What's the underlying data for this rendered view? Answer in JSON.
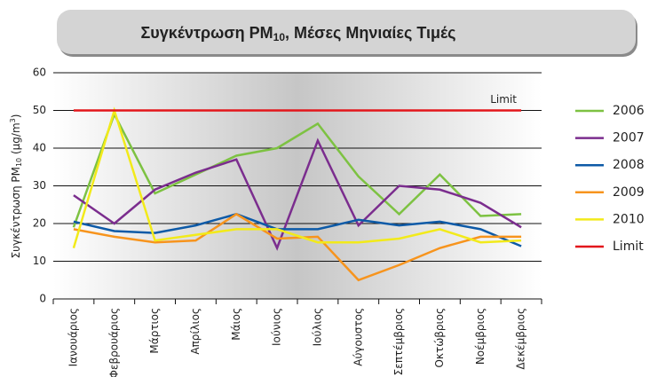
{
  "chart_data": {
    "type": "line",
    "title_parts": [
      "Συγκέντρωση PM",
      "10",
      ", Μέσες Μηνιαίες Τιμές"
    ],
    "y_label_parts": [
      "Συγκέντρωση PM",
      "10",
      " (μg/m",
      "3",
      ")"
    ],
    "annotation": "Limit",
    "categories": [
      "Ιανουάριος",
      "Φεβρουάριος",
      "Μάρτιος",
      "Απρίλιος",
      "Μάιος",
      "Ιούνιος",
      "Ιούλιος",
      "Αύγουστος",
      "Σεπτέμβριος",
      "Οκτώβριος",
      "Νοέμβριος",
      "Δεκέμβριος"
    ],
    "series": [
      {
        "name": "2006",
        "color": "#7dc242",
        "values": [
          19,
          49,
          28,
          33,
          38,
          40,
          46.5,
          32.5,
          22.5,
          33,
          22,
          22.5
        ]
      },
      {
        "name": "2007",
        "color": "#7b2d8e",
        "values": [
          27.5,
          20,
          29,
          33.5,
          37,
          13.5,
          42,
          19.5,
          30,
          29,
          25.5,
          19
        ]
      },
      {
        "name": "2008",
        "color": "#0d5aa7",
        "values": [
          20.5,
          18,
          17.5,
          19.5,
          22.5,
          18.5,
          18.5,
          21,
          19.5,
          20.5,
          18.5,
          14
        ]
      },
      {
        "name": "2009",
        "color": "#f7941d",
        "values": [
          18.5,
          16.5,
          15,
          15.5,
          22.5,
          16,
          16.5,
          5,
          9,
          13.5,
          16.5,
          16.5
        ]
      },
      {
        "name": "2010",
        "color": "#f2ea1a",
        "values": [
          13.5,
          50,
          15.5,
          17,
          18.5,
          18.5,
          15,
          15,
          16,
          18.5,
          15,
          15.5
        ]
      },
      {
        "name": "Limit",
        "color": "#e3161b",
        "values": [
          50,
          50,
          50,
          50,
          50,
          50,
          50,
          50,
          50,
          50,
          50,
          50
        ]
      }
    ],
    "ylim": [
      0,
      60
    ],
    "yticks": [
      0,
      10,
      20,
      30,
      40,
      50,
      60
    ],
    "grid": true
  }
}
